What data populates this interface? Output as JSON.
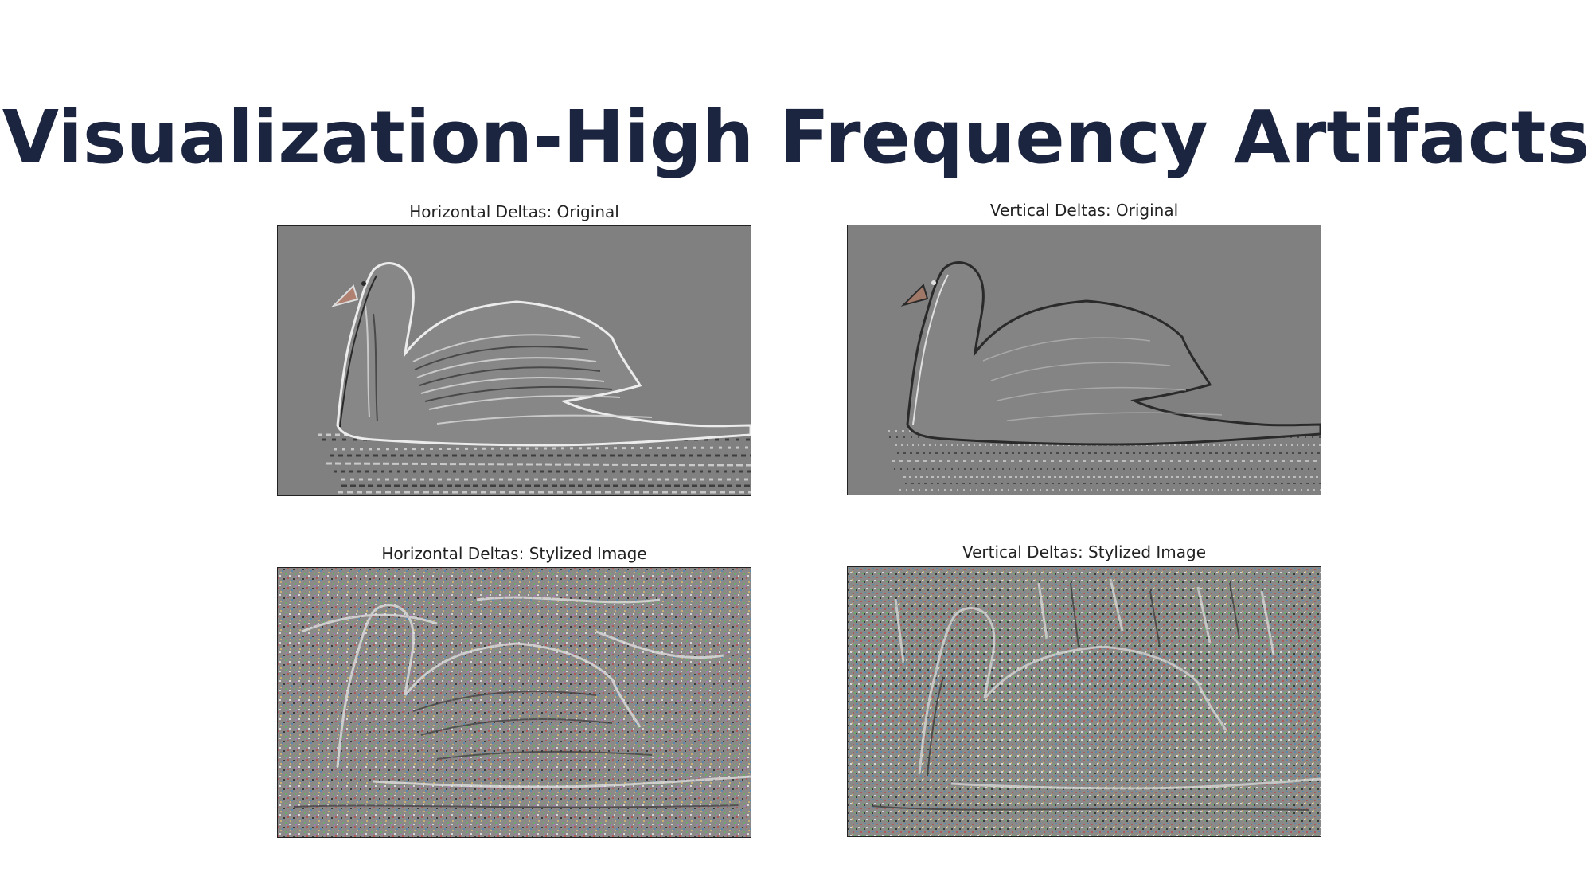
{
  "slide": {
    "title": "Visualization-High Frequency Artifacts"
  },
  "panels": [
    {
      "label": "Horizontal Deltas: Original",
      "kind": "original"
    },
    {
      "label": "Vertical Deltas: Original",
      "kind": "original"
    },
    {
      "label": "Horizontal Deltas: Stylized Image",
      "kind": "stylized"
    },
    {
      "label": "Vertical Deltas: Stylized Image",
      "kind": "stylized"
    }
  ],
  "colors": {
    "title": "#1c2540",
    "panel_background": "#808080",
    "edge_light": "#e8e8e8",
    "edge_dark": "#3a3a3a"
  }
}
